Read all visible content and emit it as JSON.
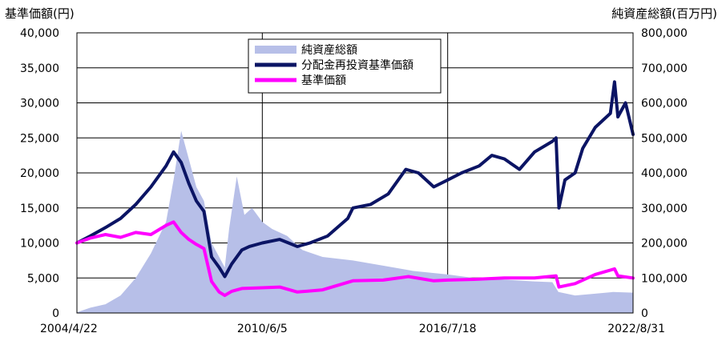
{
  "chart_data": {
    "type": "line",
    "title": "",
    "y_left_label": "基準価額(円)",
    "y_right_label": "純資産総額(百万円)",
    "y_left_range": [
      0,
      40000
    ],
    "y_right_range": [
      0,
      800000
    ],
    "y_left_ticks": [
      "0",
      "5,000",
      "10,000",
      "15,000",
      "20,000",
      "25,000",
      "30,000",
      "35,000",
      "40,000"
    ],
    "y_right_ticks": [
      "0",
      "100,000",
      "200,000",
      "300,000",
      "400,000",
      "500,000",
      "600,000",
      "700,000",
      "800,000"
    ],
    "x_range": [
      "2004-04-22",
      "2022-08-31"
    ],
    "x_ticks": [
      "2004/4/22",
      "2010/6/5",
      "2016/7/18",
      "2022/8/31"
    ],
    "grid": true,
    "legend_position": "top-center",
    "series": [
      {
        "name": "純資産総額",
        "kind": "area",
        "axis": "right",
        "color": "#b7bfe8",
        "points": [
          [
            "2004-04-22",
            2000
          ],
          [
            "2004-10-01",
            15000
          ],
          [
            "2005-04-01",
            25000
          ],
          [
            "2005-10-01",
            50000
          ],
          [
            "2006-04-01",
            100000
          ],
          [
            "2006-10-01",
            170000
          ],
          [
            "2007-04-01",
            260000
          ],
          [
            "2007-07-01",
            380000
          ],
          [
            "2007-10-01",
            520000
          ],
          [
            "2008-01-01",
            440000
          ],
          [
            "2008-04-01",
            360000
          ],
          [
            "2008-07-01",
            320000
          ],
          [
            "2008-10-01",
            200000
          ],
          [
            "2009-01-01",
            160000
          ],
          [
            "2009-03-10",
            130000
          ],
          [
            "2009-05-01",
            240000
          ],
          [
            "2009-08-01",
            390000
          ],
          [
            "2009-11-01",
            280000
          ],
          [
            "2010-02-01",
            300000
          ],
          [
            "2010-06-05",
            260000
          ],
          [
            "2010-10-01",
            240000
          ],
          [
            "2011-04-01",
            220000
          ],
          [
            "2011-10-01",
            180000
          ],
          [
            "2012-06-01",
            160000
          ],
          [
            "2013-06-01",
            150000
          ],
          [
            "2014-06-01",
            135000
          ],
          [
            "2015-06-01",
            120000
          ],
          [
            "2016-07-18",
            110000
          ],
          [
            "2017-06-01",
            100000
          ],
          [
            "2018-06-01",
            95000
          ],
          [
            "2019-06-01",
            90000
          ],
          [
            "2020-01-01",
            88000
          ],
          [
            "2020-03-15",
            60000
          ],
          [
            "2020-10-01",
            50000
          ],
          [
            "2021-06-01",
            55000
          ],
          [
            "2022-01-01",
            60000
          ],
          [
            "2022-08-31",
            58000
          ]
        ]
      },
      {
        "name": "分配金再投資基準価額",
        "kind": "line",
        "axis": "left",
        "color": "#0b1464",
        "points": [
          [
            "2004-04-22",
            10000
          ],
          [
            "2004-10-01",
            11000
          ],
          [
            "2005-04-01",
            12200
          ],
          [
            "2005-10-01",
            13500
          ],
          [
            "2006-04-01",
            15500
          ],
          [
            "2006-10-01",
            18000
          ],
          [
            "2007-04-01",
            21000
          ],
          [
            "2007-07-01",
            23000
          ],
          [
            "2007-10-01",
            21500
          ],
          [
            "2008-01-01",
            18500
          ],
          [
            "2008-04-01",
            16000
          ],
          [
            "2008-07-01",
            14500
          ],
          [
            "2008-10-01",
            8000
          ],
          [
            "2009-01-01",
            6500
          ],
          [
            "2009-03-10",
            5200
          ],
          [
            "2009-06-01",
            7000
          ],
          [
            "2009-10-01",
            9000
          ],
          [
            "2010-01-01",
            9500
          ],
          [
            "2010-06-05",
            10000
          ],
          [
            "2011-01-01",
            10500
          ],
          [
            "2011-08-01",
            9500
          ],
          [
            "2012-01-01",
            10000
          ],
          [
            "2012-08-01",
            11000
          ],
          [
            "2013-04-01",
            13500
          ],
          [
            "2013-06-01",
            15000
          ],
          [
            "2014-01-01",
            15500
          ],
          [
            "2014-08-01",
            17000
          ],
          [
            "2015-03-01",
            20500
          ],
          [
            "2015-08-01",
            20000
          ],
          [
            "2016-02-01",
            18000
          ],
          [
            "2016-07-18",
            19000
          ],
          [
            "2017-01-01",
            20000
          ],
          [
            "2017-08-01",
            21000
          ],
          [
            "2018-01-01",
            22500
          ],
          [
            "2018-06-01",
            22000
          ],
          [
            "2018-12-01",
            20500
          ],
          [
            "2019-06-01",
            23000
          ],
          [
            "2020-01-01",
            24500
          ],
          [
            "2020-02-15",
            25000
          ],
          [
            "2020-03-20",
            15000
          ],
          [
            "2020-06-01",
            19000
          ],
          [
            "2020-10-01",
            20000
          ],
          [
            "2021-01-01",
            23500
          ],
          [
            "2021-06-01",
            26500
          ],
          [
            "2021-12-01",
            28500
          ],
          [
            "2022-01-20",
            33000
          ],
          [
            "2022-03-01",
            28000
          ],
          [
            "2022-06-01",
            30000
          ],
          [
            "2022-08-31",
            25500
          ]
        ]
      },
      {
        "name": "基準価額",
        "kind": "line",
        "axis": "left",
        "color": "#ff00ff",
        "points": [
          [
            "2004-04-22",
            10000
          ],
          [
            "2004-10-01",
            10700
          ],
          [
            "2005-04-01",
            11200
          ],
          [
            "2005-10-01",
            10800
          ],
          [
            "2006-04-01",
            11500
          ],
          [
            "2006-10-01",
            11200
          ],
          [
            "2007-04-01",
            12500
          ],
          [
            "2007-07-01",
            13000
          ],
          [
            "2007-10-01",
            11500
          ],
          [
            "2008-01-01",
            10500
          ],
          [
            "2008-04-01",
            9800
          ],
          [
            "2008-07-01",
            9200
          ],
          [
            "2008-10-01",
            4500
          ],
          [
            "2009-01-01",
            3000
          ],
          [
            "2009-03-10",
            2500
          ],
          [
            "2009-06-01",
            3100
          ],
          [
            "2009-10-01",
            3500
          ],
          [
            "2010-06-05",
            3600
          ],
          [
            "2011-01-01",
            3700
          ],
          [
            "2011-08-01",
            3000
          ],
          [
            "2012-06-01",
            3300
          ],
          [
            "2013-06-01",
            4600
          ],
          [
            "2014-06-01",
            4700
          ],
          [
            "2015-04-01",
            5200
          ],
          [
            "2016-02-01",
            4600
          ],
          [
            "2016-07-18",
            4700
          ],
          [
            "2017-06-01",
            4800
          ],
          [
            "2018-06-01",
            5000
          ],
          [
            "2019-06-01",
            5000
          ],
          [
            "2020-02-15",
            5300
          ],
          [
            "2020-03-20",
            3700
          ],
          [
            "2020-10-01",
            4200
          ],
          [
            "2021-06-01",
            5500
          ],
          [
            "2022-01-20",
            6300
          ],
          [
            "2022-03-01",
            5300
          ],
          [
            "2022-08-31",
            5000
          ]
        ]
      }
    ]
  }
}
